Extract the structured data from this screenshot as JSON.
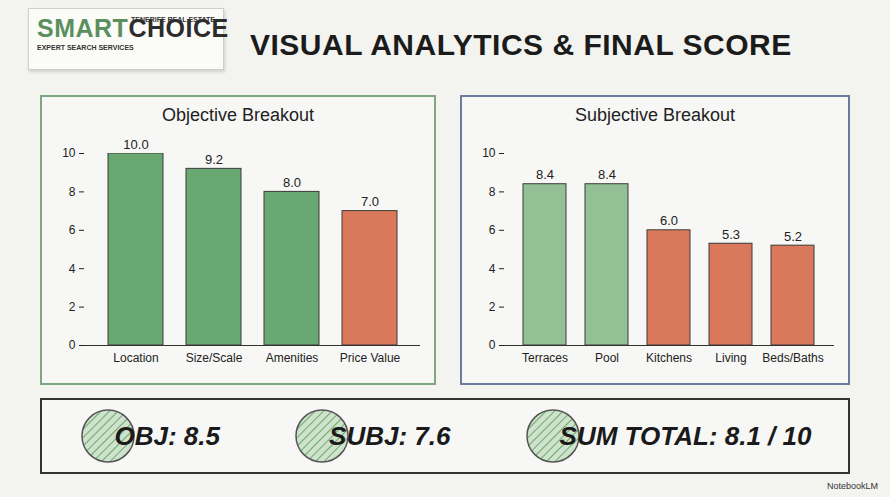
{
  "header": {
    "logo": {
      "brand_left": "SMART",
      "brand_right": "CHOICE",
      "tagline_top": "TENERIFE REAL ESTATE",
      "tagline_bottom": "EXPERT SEARCH SERVICES"
    },
    "title": "VISUAL ANALYTICS & FINAL SCORE"
  },
  "chart_data": [
    {
      "type": "bar",
      "title": "Objective Breakout",
      "categories": [
        "Location",
        "Size/Scale",
        "Amenities",
        "Price Value"
      ],
      "values": [
        10.0,
        9.2,
        8.0,
        7.0
      ],
      "value_labels": [
        "10.0",
        "9.2",
        "8.0",
        "7.0"
      ],
      "colors": [
        "#6aa872",
        "#6aa872",
        "#6aa872",
        "#d9785a"
      ],
      "ylim": [
        0,
        10
      ],
      "yticks": [
        0,
        2,
        4,
        6,
        8,
        10
      ],
      "grid": false,
      "data_labels": true
    },
    {
      "type": "bar",
      "title": "Subjective Breakout",
      "categories": [
        "Terraces",
        "Pool",
        "Kitchens",
        "Living",
        "Beds/Baths"
      ],
      "values": [
        8.4,
        8.4,
        6.0,
        5.3,
        5.2
      ],
      "value_labels": [
        "8.4",
        "8.4",
        "6.0",
        "5.3",
        "5.2"
      ],
      "colors": [
        "#94c095",
        "#94c095",
        "#d9785a",
        "#d9785a",
        "#d9785a"
      ],
      "ylim": [
        0,
        10
      ],
      "yticks": [
        0,
        2,
        4,
        6,
        8,
        10
      ],
      "grid": false,
      "data_labels": true
    }
  ],
  "scores": [
    "OBJ: 8.5",
    "SUBJ: 7.6",
    "SUM TOTAL: 8.1 / 10"
  ],
  "footer": {
    "watermark": "NotebookLM"
  }
}
